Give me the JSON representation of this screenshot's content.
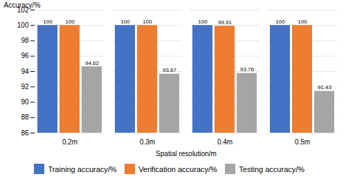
{
  "chart_data": {
    "type": "bar",
    "categories": [
      "0.2m",
      "0.3m",
      "0.4m",
      "0.5m"
    ],
    "series": [
      {
        "name": "Training accuracy/%",
        "color": "#4472C4",
        "values": [
          100,
          100,
          100,
          100
        ]
      },
      {
        "name": "Verification accuracy/%",
        "color": "#ED7D31",
        "values": [
          100,
          100,
          99.91,
          100
        ]
      },
      {
        "name": "Testing accuracy/%",
        "color": "#A5A5A5",
        "values": [
          94.62,
          93.67,
          93.76,
          91.43
        ]
      }
    ],
    "xlabel": "Spatial resolution/m",
    "ylabel": "Accuracy/%",
    "ylim": [
      86,
      102
    ],
    "yticks": [
      86,
      88,
      90,
      92,
      94,
      96,
      98,
      100,
      102
    ],
    "grid": true,
    "data_labels": true,
    "legend": "bottom"
  }
}
